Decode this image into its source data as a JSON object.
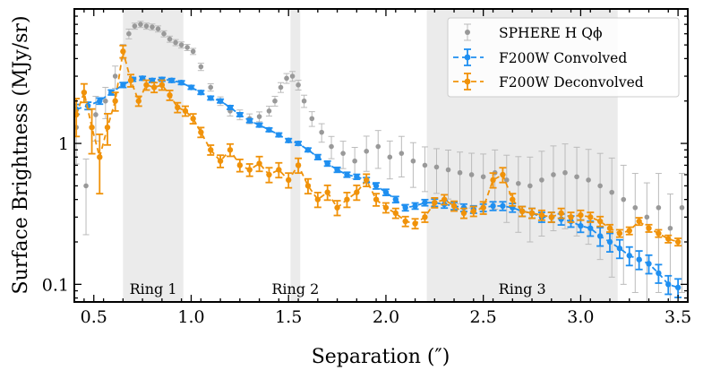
{
  "chart_data": {
    "type": "line",
    "title": "",
    "xlabel": "Separation (″)",
    "ylabel": "Surface Brightness (MJy/sr)",
    "xlim": [
      0.4,
      3.55
    ],
    "ylim": [
      0.075,
      9.0
    ],
    "yscale": "log",
    "x_ticks": [
      0.5,
      1.0,
      1.5,
      2.0,
      2.5,
      3.0,
      3.5
    ],
    "x_tick_labels": [
      "0.5",
      "1.0",
      "1.5",
      "2.0",
      "2.5",
      "3.0",
      "3.5"
    ],
    "y_ticks": [
      0.1,
      1
    ],
    "y_tick_labels": [
      "0.1",
      "1"
    ],
    "legend_position": "top-right",
    "bands": [
      {
        "name": "Ring 1",
        "x0": 0.65,
        "x1": 0.96
      },
      {
        "name": "Ring 2",
        "x0": 1.51,
        "x1": 1.56
      },
      {
        "name": "Ring 3",
        "x0": 2.21,
        "x1": 3.19
      }
    ],
    "band_labels": [
      "Ring 1",
      "Ring 2",
      "Ring 3"
    ],
    "series": [
      {
        "name": "SPHERE H Q_phi",
        "legend_label": "SPHERE H Qϕ",
        "color": "#999999",
        "x": [
          0.41,
          0.46,
          0.51,
          0.56,
          0.61,
          0.65,
          0.68,
          0.71,
          0.74,
          0.77,
          0.8,
          0.83,
          0.86,
          0.89,
          0.92,
          0.95,
          0.98,
          1.01,
          1.05,
          1.1,
          1.15,
          1.2,
          1.25,
          1.3,
          1.35,
          1.4,
          1.43,
          1.46,
          1.49,
          1.52,
          1.55,
          1.58,
          1.62,
          1.67,
          1.72,
          1.78,
          1.84,
          1.9,
          1.96,
          2.02,
          2.08,
          2.14,
          2.2,
          2.26,
          2.32,
          2.38,
          2.44,
          2.5,
          2.56,
          2.62,
          2.68,
          2.74,
          2.8,
          2.86,
          2.92,
          2.98,
          3.04,
          3.1,
          3.16,
          3.22,
          3.28,
          3.34,
          3.4,
          3.46,
          3.52
        ],
        "y": [
          1.3,
          0.5,
          1.6,
          2.0,
          3.0,
          4.5,
          6.0,
          6.8,
          7.0,
          6.8,
          6.7,
          6.5,
          6.0,
          5.5,
          5.2,
          5.0,
          4.8,
          4.5,
          3.5,
          2.5,
          2.0,
          1.7,
          1.6,
          1.5,
          1.55,
          1.7,
          2.0,
          2.5,
          2.9,
          3.0,
          2.6,
          2.0,
          1.5,
          1.2,
          0.95,
          0.85,
          0.75,
          0.88,
          0.95,
          0.8,
          0.85,
          0.75,
          0.7,
          0.68,
          0.65,
          0.62,
          0.6,
          0.58,
          0.62,
          0.55,
          0.52,
          0.5,
          0.55,
          0.6,
          0.62,
          0.58,
          0.55,
          0.5,
          0.45,
          0.4,
          0.35,
          0.3,
          0.35,
          0.25,
          0.35
        ],
        "err_frac": [
          0.45,
          0.55,
          0.35,
          0.25,
          0.18,
          0.12,
          0.08,
          0.05,
          0.05,
          0.05,
          0.05,
          0.05,
          0.05,
          0.05,
          0.05,
          0.05,
          0.05,
          0.05,
          0.06,
          0.06,
          0.07,
          0.08,
          0.08,
          0.08,
          0.08,
          0.08,
          0.08,
          0.08,
          0.08,
          0.08,
          0.08,
          0.1,
          0.12,
          0.15,
          0.18,
          0.22,
          0.25,
          0.28,
          0.3,
          0.3,
          0.32,
          0.35,
          0.35,
          0.35,
          0.38,
          0.4,
          0.42,
          0.45,
          0.45,
          0.5,
          0.55,
          0.6,
          0.6,
          0.6,
          0.6,
          0.62,
          0.65,
          0.7,
          0.75,
          0.75,
          0.75,
          0.75,
          0.75,
          0.75,
          0.75
        ]
      },
      {
        "name": "F200W Convolved",
        "legend_label": "F200W Convolved",
        "color": "#1f8ff0",
        "x": [
          0.41,
          0.47,
          0.53,
          0.59,
          0.65,
          0.7,
          0.75,
          0.8,
          0.85,
          0.9,
          0.95,
          1.0,
          1.05,
          1.1,
          1.15,
          1.2,
          1.25,
          1.3,
          1.35,
          1.4,
          1.45,
          1.5,
          1.55,
          1.6,
          1.65,
          1.7,
          1.75,
          1.8,
          1.85,
          1.9,
          1.95,
          2.0,
          2.05,
          2.1,
          2.15,
          2.2,
          2.25,
          2.3,
          2.35,
          2.4,
          2.45,
          2.5,
          2.55,
          2.6,
          2.65,
          2.7,
          2.75,
          2.8,
          2.85,
          2.9,
          2.95,
          3.0,
          3.05,
          3.1,
          3.15,
          3.2,
          3.25,
          3.3,
          3.35,
          3.4,
          3.45,
          3.5
        ],
        "y": [
          1.75,
          1.85,
          2.0,
          2.3,
          2.6,
          2.85,
          2.9,
          2.8,
          2.85,
          2.8,
          2.7,
          2.5,
          2.3,
          2.1,
          2.0,
          1.8,
          1.6,
          1.45,
          1.35,
          1.25,
          1.15,
          1.05,
          1.0,
          0.9,
          0.8,
          0.72,
          0.65,
          0.6,
          0.58,
          0.55,
          0.5,
          0.45,
          0.4,
          0.35,
          0.36,
          0.38,
          0.38,
          0.37,
          0.36,
          0.35,
          0.34,
          0.35,
          0.36,
          0.36,
          0.35,
          0.33,
          0.32,
          0.3,
          0.3,
          0.29,
          0.28,
          0.26,
          0.25,
          0.22,
          0.2,
          0.18,
          0.16,
          0.15,
          0.14,
          0.12,
          0.1,
          0.095
        ],
        "err_frac": [
          0.08,
          0.06,
          0.05,
          0.04,
          0.04,
          0.03,
          0.03,
          0.03,
          0.03,
          0.03,
          0.03,
          0.03,
          0.03,
          0.03,
          0.03,
          0.03,
          0.03,
          0.03,
          0.03,
          0.03,
          0.03,
          0.03,
          0.03,
          0.03,
          0.04,
          0.04,
          0.04,
          0.04,
          0.04,
          0.04,
          0.05,
          0.05,
          0.05,
          0.05,
          0.05,
          0.05,
          0.06,
          0.06,
          0.06,
          0.06,
          0.06,
          0.06,
          0.07,
          0.07,
          0.07,
          0.08,
          0.08,
          0.08,
          0.08,
          0.09,
          0.09,
          0.1,
          0.12,
          0.15,
          0.15,
          0.15,
          0.15,
          0.15,
          0.15,
          0.15,
          0.15,
          0.15
        ]
      },
      {
        "name": "F200W Deconvolved",
        "legend_label": "F200W Deconvolved",
        "color": "#f0920a",
        "x": [
          0.41,
          0.45,
          0.49,
          0.53,
          0.57,
          0.61,
          0.65,
          0.69,
          0.73,
          0.77,
          0.81,
          0.85,
          0.89,
          0.93,
          0.97,
          1.01,
          1.05,
          1.1,
          1.15,
          1.2,
          1.25,
          1.3,
          1.35,
          1.4,
          1.45,
          1.5,
          1.55,
          1.6,
          1.65,
          1.7,
          1.75,
          1.8,
          1.85,
          1.9,
          1.95,
          2.0,
          2.05,
          2.1,
          2.15,
          2.2,
          2.25,
          2.3,
          2.35,
          2.4,
          2.45,
          2.5,
          2.55,
          2.6,
          2.65,
          2.7,
          2.75,
          2.8,
          2.85,
          2.9,
          2.95,
          3.0,
          3.05,
          3.1,
          3.15,
          3.2,
          3.25,
          3.3,
          3.35,
          3.4,
          3.45,
          3.5
        ],
        "y": [
          1.6,
          2.3,
          1.3,
          0.8,
          1.3,
          2.0,
          4.5,
          2.8,
          2.0,
          2.6,
          2.5,
          2.6,
          2.2,
          1.8,
          1.7,
          1.5,
          1.2,
          0.9,
          0.75,
          0.9,
          0.7,
          0.65,
          0.72,
          0.6,
          0.65,
          0.55,
          0.7,
          0.5,
          0.4,
          0.45,
          0.35,
          0.4,
          0.45,
          0.55,
          0.4,
          0.35,
          0.32,
          0.28,
          0.27,
          0.3,
          0.38,
          0.4,
          0.36,
          0.32,
          0.33,
          0.35,
          0.55,
          0.6,
          0.4,
          0.33,
          0.32,
          0.31,
          0.3,
          0.32,
          0.3,
          0.31,
          0.3,
          0.28,
          0.25,
          0.23,
          0.24,
          0.28,
          0.25,
          0.23,
          0.21,
          0.2
        ],
        "err_frac": [
          0.3,
          0.15,
          0.35,
          0.45,
          0.25,
          0.15,
          0.1,
          0.1,
          0.08,
          0.08,
          0.08,
          0.08,
          0.08,
          0.08,
          0.08,
          0.08,
          0.08,
          0.08,
          0.1,
          0.1,
          0.1,
          0.1,
          0.12,
          0.12,
          0.12,
          0.12,
          0.12,
          0.12,
          0.12,
          0.12,
          0.12,
          0.12,
          0.12,
          0.1,
          0.1,
          0.08,
          0.08,
          0.08,
          0.08,
          0.08,
          0.08,
          0.08,
          0.08,
          0.08,
          0.08,
          0.1,
          0.12,
          0.12,
          0.1,
          0.08,
          0.08,
          0.08,
          0.08,
          0.08,
          0.08,
          0.08,
          0.08,
          0.08,
          0.06,
          0.06,
          0.06,
          0.06,
          0.06,
          0.06,
          0.06,
          0.06
        ]
      }
    ]
  }
}
